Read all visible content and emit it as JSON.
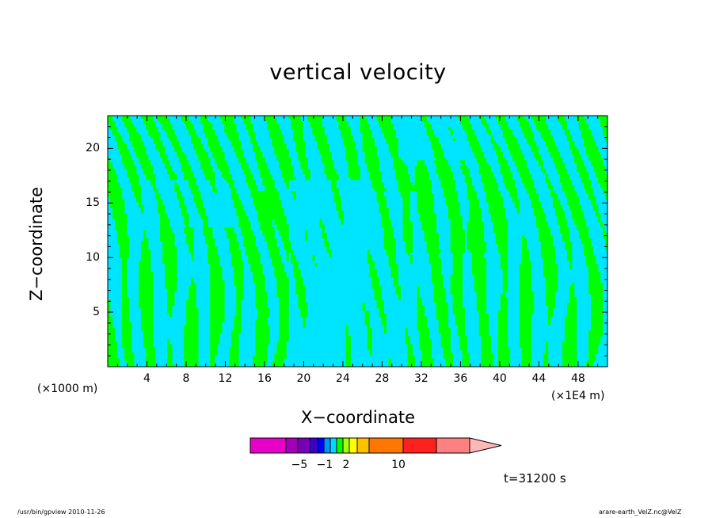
{
  "chart_data": {
    "type": "heatmap",
    "title": "vertical velocity",
    "xlabel": "X−coordinate",
    "ylabel": "Z−coordinate",
    "x_unit_left": "(×1000 m)",
    "x_unit_right": "(×1E4 m)",
    "xlim": [
      0,
      51
    ],
    "ylim": [
      0,
      23
    ],
    "x_ticks": [
      "4",
      "8",
      "12",
      "16",
      "20",
      "24",
      "28",
      "32",
      "36",
      "40",
      "44",
      "48"
    ],
    "y_ticks": [
      "5",
      "10",
      "15",
      "20"
    ],
    "colors": {
      "positive": "#00ff00",
      "negative": "#00e5ff",
      "contour": "#333333"
    },
    "colorbar": {
      "colors": [
        "#e600c8",
        "#a300b8",
        "#7a00b8",
        "#3c00c8",
        "#0000ff",
        "#0090ff",
        "#00d8ff",
        "#00ff00",
        "#a8ff00",
        "#ffff00",
        "#ffc000",
        "#ff7700",
        "#ff2020",
        "#ff8080",
        "#ffb8b8"
      ],
      "tick_labels": [
        "−5",
        "−1",
        "2",
        "10"
      ]
    },
    "time_label": "t=31200 s"
  },
  "footer": {
    "left": "/usr/bin/gpview   2010-11-26",
    "right": "arare-earth_VelZ.nc@VelZ"
  }
}
